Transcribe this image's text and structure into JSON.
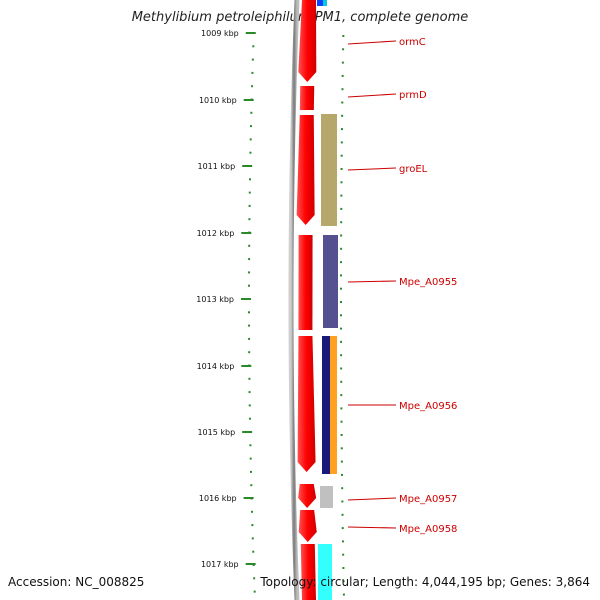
{
  "title": "Methylibium petroleiphilum PM1, complete genome",
  "footer": {
    "accession_label": "Accession: NC_008825",
    "topology_label": "Topology: circular",
    "length_label": "Length: 4,044,195 bp",
    "genes_label": "Genes: 3,864"
  },
  "scale": {
    "kbp_ticks": [
      "1009 kbp",
      "1010 kbp",
      "1011 kbp",
      "1012 kbp",
      "1013 kbp",
      "1014 kbp",
      "1015 kbp",
      "1016 kbp",
      "1017 kbp"
    ]
  },
  "genes": [
    {
      "label": "ormC",
      "color": "#cc0000"
    },
    {
      "label": "prmD",
      "color": "#cc0000"
    },
    {
      "label": "groEL",
      "color": "#cc0000"
    },
    {
      "label": "Mpe_A0955",
      "color": "#cc0000"
    },
    {
      "label": "Mpe_A0956",
      "color": "#cc0000"
    },
    {
      "label": "Mpe_A0957",
      "color": "#cc0000"
    },
    {
      "label": "Mpe_A0958",
      "color": "#cc0000"
    }
  ],
  "colors": {
    "cds": "#ff0000",
    "cds_highlight": "#ff7070",
    "backbone": "#888888",
    "tick": "#2a8a2a",
    "leader": "#cc0000",
    "groEL_feature": "#b5a86a",
    "Mpe_A0955_feature": "#55508f",
    "Mpe_A0956_feature_a": "#1a1a7a",
    "Mpe_A0956_feature_b": "#ffa020",
    "Mpe_A0957_feature": "#c0c0c0",
    "top_feature_a": "#1040ff",
    "top_feature_b": "#00ccdd",
    "bottom_feature": "#33ffff"
  }
}
